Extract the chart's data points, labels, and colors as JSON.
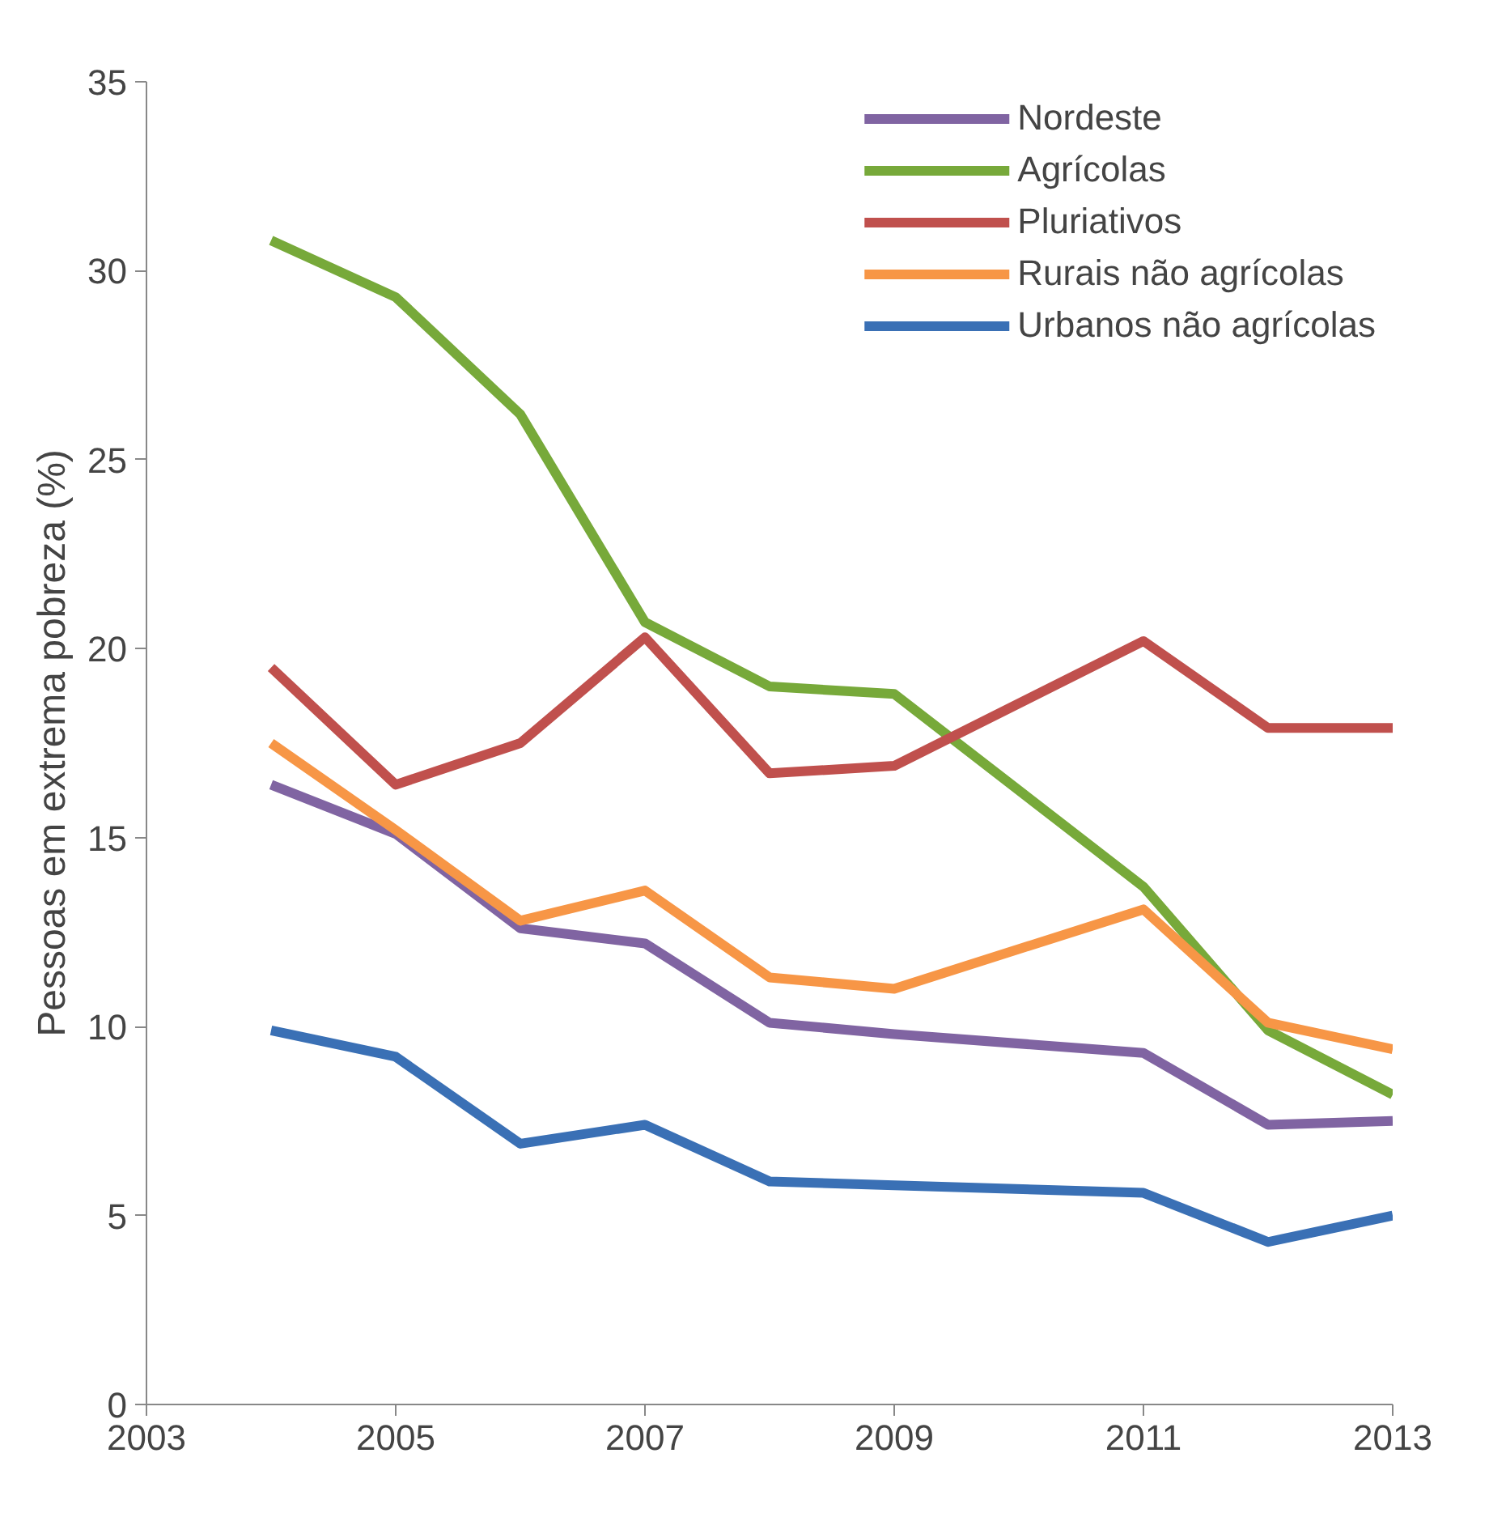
{
  "chart_data": {
    "type": "line",
    "ylabel": "Pessoas em extrema pobreza (%)",
    "x": [
      2004,
      2005,
      2006,
      2007,
      2008,
      2009,
      2011,
      2012,
      2013
    ],
    "series": [
      {
        "name": "Nordeste",
        "color": "#8064a2",
        "values": [
          16.4,
          15.1,
          12.6,
          12.2,
          10.1,
          9.8,
          9.3,
          7.4,
          7.5
        ]
      },
      {
        "name": "Agrícolas",
        "color": "#77a93a",
        "values": [
          30.8,
          29.3,
          26.2,
          20.7,
          19.0,
          18.8,
          13.7,
          9.9,
          8.2
        ]
      },
      {
        "name": "Pluriativos",
        "color": "#c0504d",
        "values": [
          19.5,
          16.4,
          17.5,
          20.3,
          16.7,
          16.9,
          20.2,
          17.9,
          17.9
        ]
      },
      {
        "name": "Rurais não agrícolas",
        "color": "#f79646",
        "values": [
          17.5,
          15.2,
          12.8,
          13.6,
          11.3,
          11.0,
          13.1,
          10.1,
          9.4
        ]
      },
      {
        "name": "Urbanos não agrícolas",
        "color": "#3a70b5",
        "values": [
          9.9,
          9.2,
          6.9,
          7.4,
          5.9,
          5.8,
          5.6,
          4.3,
          5.0
        ]
      }
    ],
    "xlim": [
      2003,
      2013
    ],
    "xticks": [
      2003,
      2005,
      2007,
      2009,
      2011,
      2013
    ],
    "ylim": [
      0,
      35
    ],
    "yticks": [
      0,
      5,
      10,
      15,
      20,
      25,
      30,
      35
    ],
    "grid": false,
    "legend": "top right",
    "marker": "none",
    "line_style": "solid"
  }
}
